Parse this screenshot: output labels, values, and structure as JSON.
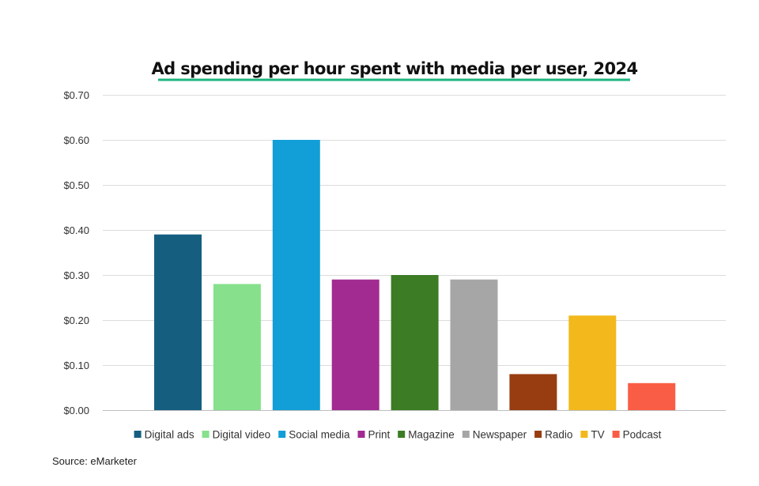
{
  "chart_data": {
    "type": "bar",
    "title": "Ad spending per hour spent with media per user, 2024",
    "categories": [
      "Digital ads",
      "Digital video",
      "Social media",
      "Print",
      "Magazine",
      "Newspaper",
      "Radio",
      "TV",
      "Podcast"
    ],
    "values": [
      0.39,
      0.28,
      0.6,
      0.29,
      0.3,
      0.29,
      0.08,
      0.21,
      0.06
    ],
    "colors": [
      "#155e80",
      "#86e08c",
      "#129ed6",
      "#a12b91",
      "#3b7c24",
      "#a6a6a6",
      "#973d11",
      "#f2b81c",
      "#fa5d45"
    ],
    "ylim": [
      0,
      0.7
    ],
    "yticks": [
      0,
      0.1,
      0.2,
      0.3,
      0.4,
      0.5,
      0.6,
      0.7
    ],
    "ytick_labels": [
      "$0.00",
      "$0.10",
      "$0.20",
      "$0.30",
      "$0.40",
      "$0.50",
      "$0.60",
      "$0.70"
    ],
    "xlabel": "",
    "ylabel": "",
    "grid": true,
    "legend_position": "bottom",
    "title_underline_color": "#1fb57f",
    "source": "Source: eMarketer"
  }
}
